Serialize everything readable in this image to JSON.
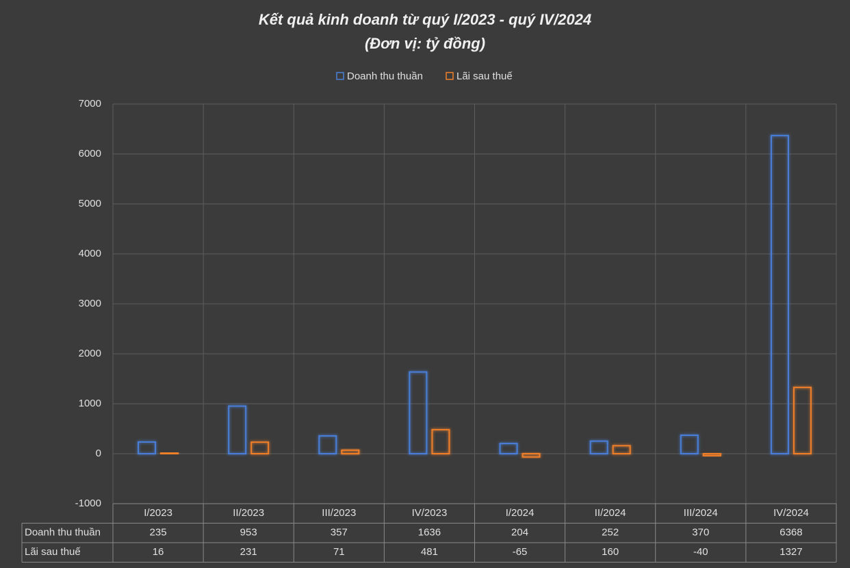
{
  "chart_data": {
    "type": "bar",
    "title": "Kết quả kinh doanh từ quý I/2023 - quý IV/2024",
    "subtitle": "(Đơn vị: tỷ đồng)",
    "categories": [
      "I/2023",
      "II/2023",
      "III/2023",
      "IV/2023",
      "I/2024",
      "II/2024",
      "III/2024",
      "IV/2024"
    ],
    "series": [
      {
        "name": "Doanh thu thuần",
        "color": "#4a7fd8",
        "values": [
          235,
          953,
          357,
          1636,
          204,
          252,
          370,
          6368
        ]
      },
      {
        "name": "Lãi sau thuế",
        "color": "#f07f2a",
        "values": [
          16,
          231,
          71,
          481,
          -65,
          160,
          -40,
          1327
        ]
      }
    ],
    "ylim": [
      -1000,
      7000
    ],
    "yticks": [
      -1000,
      0,
      1000,
      2000,
      3000,
      4000,
      5000,
      6000,
      7000
    ],
    "grid": true
  }
}
